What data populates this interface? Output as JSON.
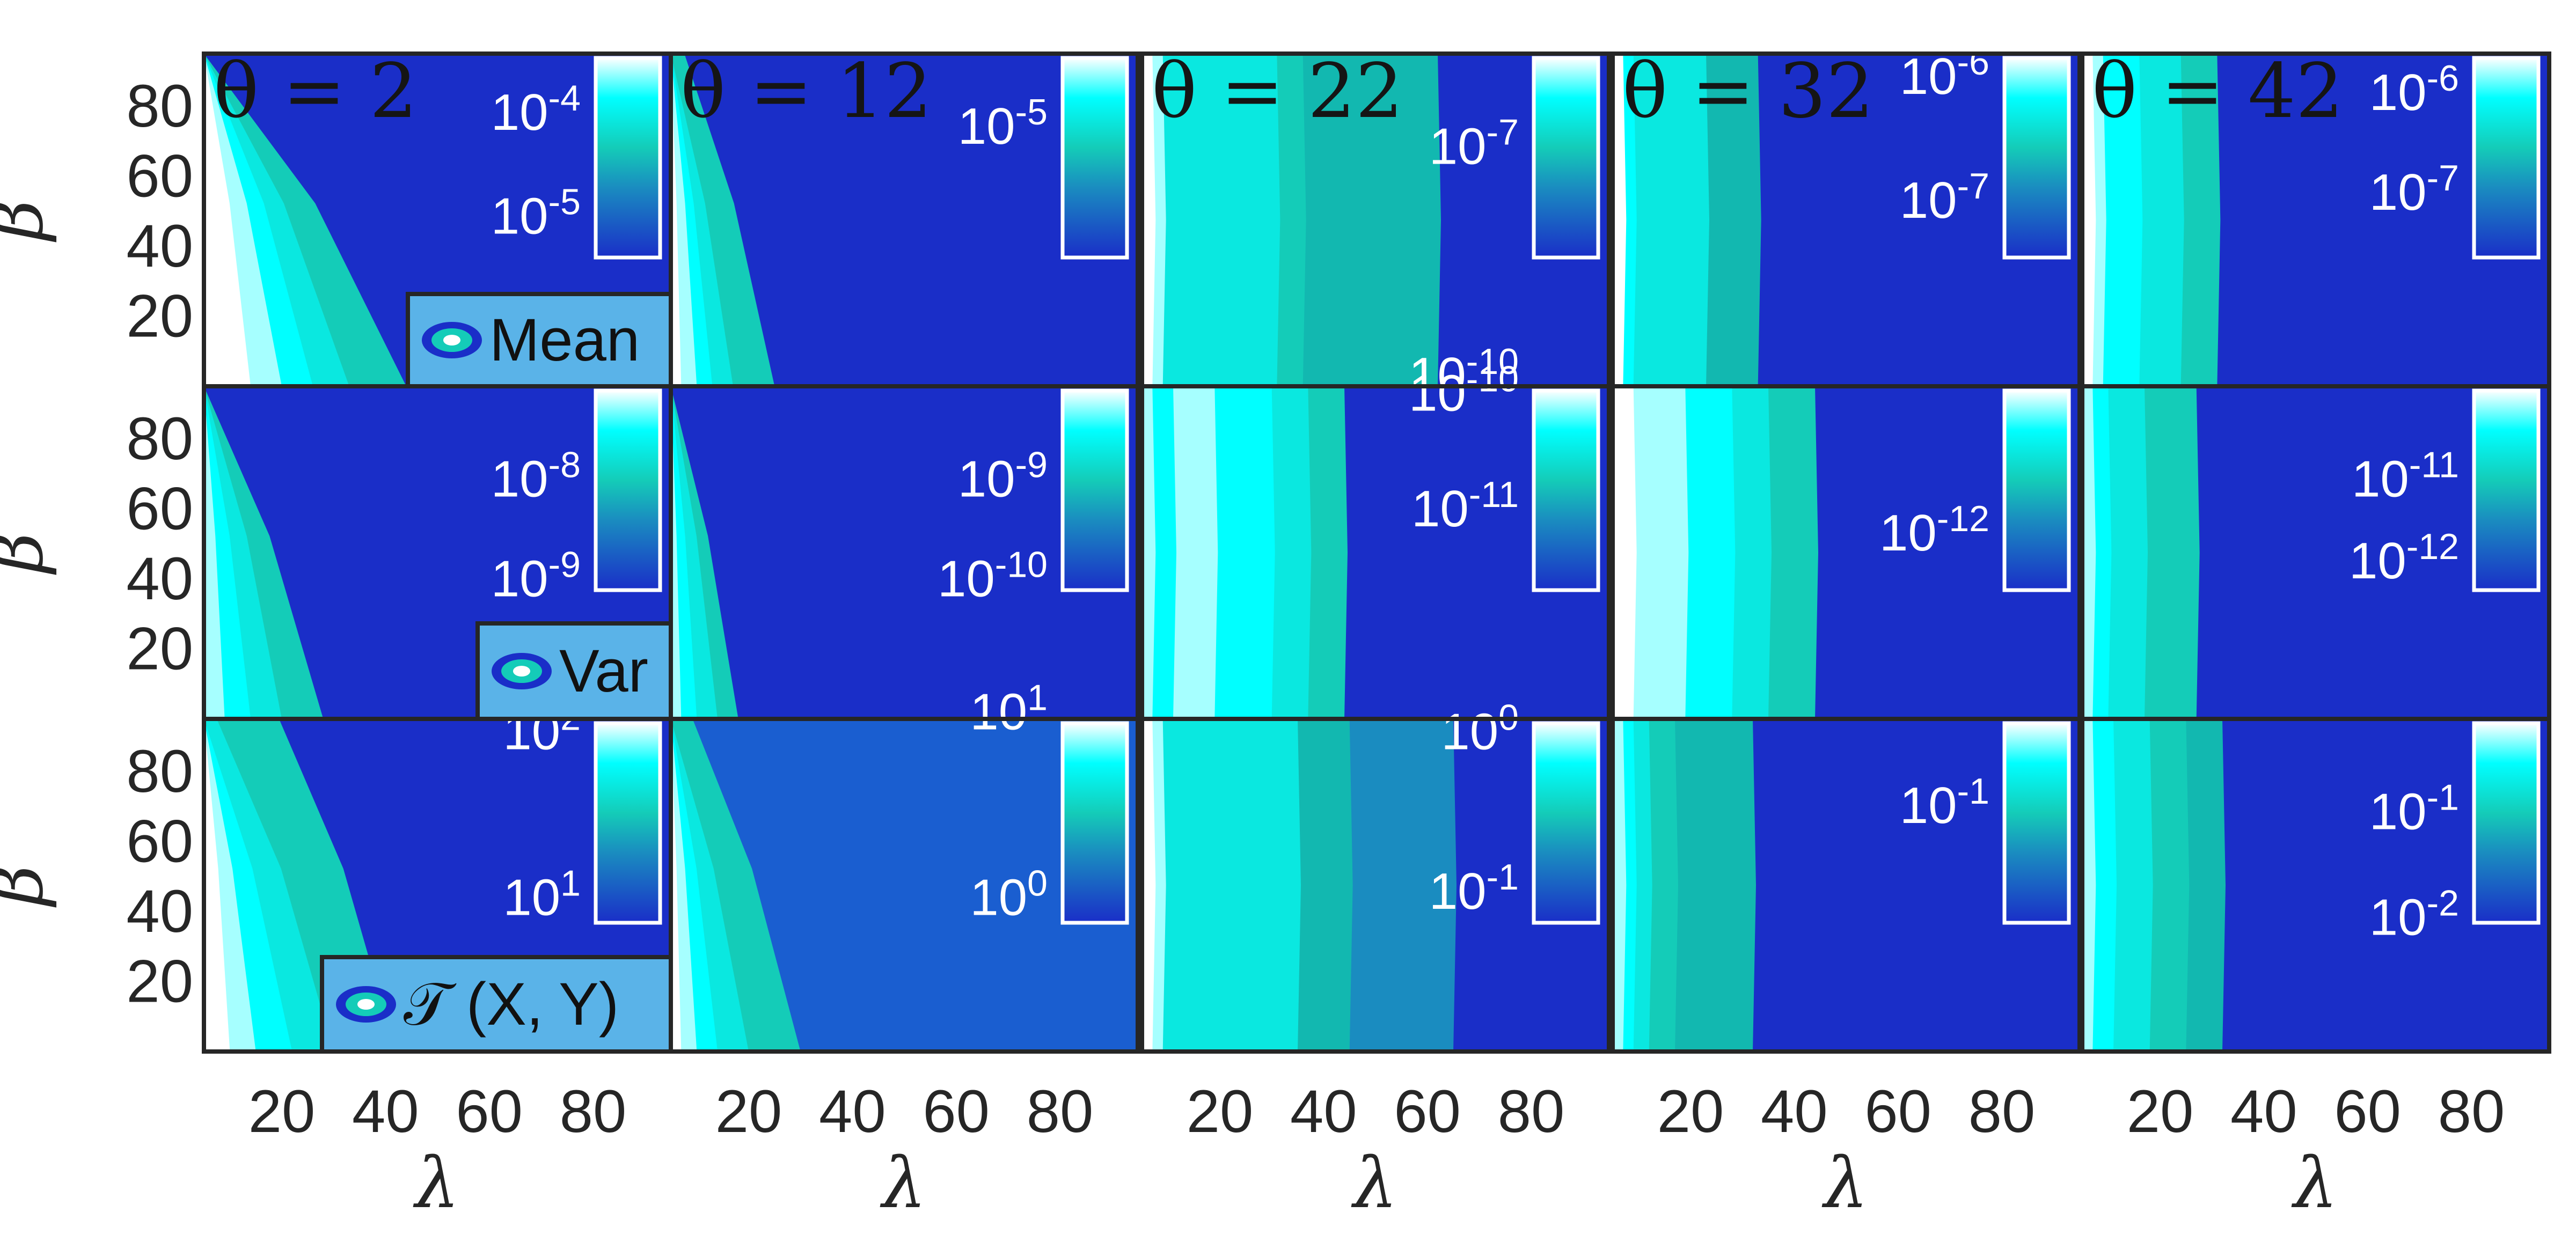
{
  "chart_data": {
    "type": "heatmap",
    "layout": "3x5 grid of filled contour panels",
    "colormap": [
      "#1a2ec8",
      "#1a5ed0",
      "#1a8cc0",
      "#12b8b0",
      "#14ccb8",
      "#0ae8e0",
      "#00ffff",
      "#a6ffff",
      "#ffffff"
    ],
    "x_label": "λ",
    "y_label": "β",
    "x_ticks": [
      "20",
      "40",
      "60",
      "80"
    ],
    "y_ticks": [
      "20",
      "40",
      "60",
      "80"
    ],
    "xlim": [
      5,
      95
    ],
    "ylim": [
      0,
      95
    ],
    "columns": [
      {
        "theta_label": "θ = 2"
      },
      {
        "theta_label": "θ = 12"
      },
      {
        "theta_label": "θ = 22"
      },
      {
        "theta_label": "θ = 32"
      },
      {
        "theta_label": "θ = 42"
      }
    ],
    "rows": [
      {
        "metric": "Mean",
        "legend_label": "Mean"
      },
      {
        "metric": "Var",
        "legend_label": "Var"
      },
      {
        "metric": "T(X,Y)",
        "legend_label": "𝒯 (X, Y)"
      }
    ],
    "panels": [
      [
        {
          "mode": "diag",
          "base": 0,
          "bands": [
            {
              "l": 14,
              "level": 8
            },
            {
              "l": 20,
              "level": 7
            },
            {
              "l": 26,
              "level": 6
            },
            {
              "l": 33,
              "level": 5
            },
            {
              "l": 44,
              "level": 4
            }
          ],
          "slope": -0.52,
          "colorbar_labels": [
            {
              "base": "10",
              "exp": "-4",
              "pos": 0.28
            },
            {
              "base": "10",
              "exp": "-5",
              "pos": 0.8
            }
          ]
        },
        {
          "mode": "diag",
          "base": 0,
          "bands": [
            {
              "l": 7,
              "level": 8
            },
            {
              "l": 10,
              "level": 7
            },
            {
              "l": 13,
              "level": 6
            },
            {
              "l": 17,
              "level": 5
            },
            {
              "l": 25,
              "level": 4
            }
          ],
          "slope": -0.18,
          "colorbar_labels": [
            {
              "base": "10",
              "exp": "-5",
              "pos": 0.35
            }
          ]
        },
        {
          "mode": "vert",
          "base": 0,
          "bands": [
            {
              "l": 7,
              "level": 8
            },
            {
              "l": 9,
              "level": 7
            },
            {
              "l": 31,
              "level": 5
            },
            {
              "l": 36,
              "level": 4
            },
            {
              "l": 62,
              "level": 3
            }
          ],
          "colorbar_labels": [
            {
              "base": "10",
              "exp": "-7",
              "pos": 0.45
            },
            {
              "base": "10",
              "exp": "-10",
              "pos": 1.6
            }
          ]
        },
        {
          "mode": "vert",
          "base": 0,
          "bands": [
            {
              "l": 7,
              "level": 8
            },
            {
              "l": 9,
              "level": 6
            },
            {
              "l": 23,
              "level": 5
            },
            {
              "l": 33,
              "level": 3
            }
          ],
          "colorbar_labels": [
            {
              "base": "10",
              "exp": "-6",
              "pos": 0.1
            },
            {
              "base": "10",
              "exp": "-7",
              "pos": 0.72
            }
          ]
        },
        {
          "mode": "vert",
          "base": 0,
          "bands": [
            {
              "l": 7,
              "level": 8
            },
            {
              "l": 9,
              "level": 7
            },
            {
              "l": 16,
              "level": 6
            },
            {
              "l": 24,
              "level": 5
            },
            {
              "l": 31,
              "level": 4
            }
          ],
          "colorbar_labels": [
            {
              "base": "10",
              "exp": "-6",
              "pos": 0.18
            },
            {
              "base": "10",
              "exp": "-7",
              "pos": 0.68
            }
          ]
        }
      ],
      [
        {
          "mode": "diag",
          "base": 0,
          "bands": [
            {
              "l": 9,
              "level": 7
            },
            {
              "l": 14,
              "level": 6
            },
            {
              "l": 20,
              "level": 5
            },
            {
              "l": 28,
              "level": 4
            }
          ],
          "slope": -0.3,
          "colorbar_labels": [
            {
              "base": "10",
              "exp": "-8",
              "pos": 0.45
            },
            {
              "base": "10",
              "exp": "-9",
              "pos": 0.95
            }
          ]
        },
        {
          "mode": "diag",
          "base": 0,
          "bands": [
            {
              "l": 7,
              "level": 7
            },
            {
              "l": 10,
              "level": 6
            },
            {
              "l": 14,
              "level": 5
            },
            {
              "l": 18,
              "level": 4
            }
          ],
          "slope": -0.14,
          "colorbar_labels": [
            {
              "base": "10",
              "exp": "-9",
              "pos": 0.45
            },
            {
              "base": "10",
              "exp": "-10",
              "pos": 0.95
            }
          ]
        },
        {
          "mode": "vert",
          "base": 0,
          "bands": [
            {
              "l": 7,
              "level": 7
            },
            {
              "l": 11,
              "level": 6
            },
            {
              "l": 19,
              "level": 7
            },
            {
              "l": 30,
              "level": 6
            },
            {
              "l": 37,
              "level": 5
            },
            {
              "l": 44,
              "level": 4
            }
          ],
          "colorbar_labels": [
            {
              "base": "10",
              "exp": "-10",
              "pos": 0.02
            },
            {
              "base": "10",
              "exp": "-11",
              "pos": 0.6
            }
          ]
        },
        {
          "mode": "vert",
          "base": 0,
          "bands": [
            {
              "l": 9,
              "level": 8
            },
            {
              "l": 19,
              "level": 7
            },
            {
              "l": 28,
              "level": 6
            },
            {
              "l": 35,
              "level": 5
            },
            {
              "l": 44,
              "level": 4
            }
          ],
          "colorbar_labels": [
            {
              "base": "10",
              "exp": "-12",
              "pos": 0.72
            }
          ]
        },
        {
          "mode": "vert",
          "base": 0,
          "bands": [
            {
              "l": 7,
              "level": 7
            },
            {
              "l": 10,
              "level": 6
            },
            {
              "l": 17,
              "level": 5
            },
            {
              "l": 27,
              "level": 4
            }
          ],
          "colorbar_labels": [
            {
              "base": "10",
              "exp": "-11",
              "pos": 0.45
            },
            {
              "base": "10",
              "exp": "-12",
              "pos": 0.86
            }
          ]
        }
      ],
      [
        {
          "mode": "diag",
          "base": 0,
          "bands": [
            {
              "l": 10,
              "level": 8
            },
            {
              "l": 15,
              "level": 7
            },
            {
              "l": 22,
              "level": 6
            },
            {
              "l": 30,
              "level": 5
            },
            {
              "l": 42,
              "level": 4
            }
          ],
          "slope": -0.24,
          "colorbar_labels": [
            {
              "base": "10",
              "exp": "2",
              "pos": 0.05
            },
            {
              "base": "10",
              "exp": "1",
              "pos": 0.88
            }
          ]
        },
        {
          "mode": "diag",
          "base": 1,
          "bands": [
            {
              "l": 7,
              "level": 8
            },
            {
              "l": 10,
              "level": 7
            },
            {
              "l": 14,
              "level": 6
            },
            {
              "l": 20,
              "level": 5
            },
            {
              "l": 30,
              "level": 4
            }
          ],
          "slope": -0.22,
          "colorbar_labels": [
            {
              "base": "10",
              "exp": "1",
              "pos": -0.05
            },
            {
              "base": "10",
              "exp": "0",
              "pos": 0.88
            }
          ]
        },
        {
          "mode": "vert",
          "base": 0,
          "bands": [
            {
              "l": 7,
              "level": 8
            },
            {
              "l": 9,
              "level": 7
            },
            {
              "l": 35,
              "level": 5
            },
            {
              "l": 45,
              "level": 3
            },
            {
              "l": 65,
              "level": 2
            }
          ],
          "colorbar_labels": [
            {
              "base": "10",
              "exp": "0",
              "pos": 0.05
            },
            {
              "base": "10",
              "exp": "-1",
              "pos": 0.85
            }
          ]
        },
        {
          "mode": "vert",
          "base": 0,
          "bands": [
            {
              "l": 7,
              "level": 7
            },
            {
              "l": 9,
              "level": 6
            },
            {
              "l": 12,
              "level": 5
            },
            {
              "l": 17,
              "level": 4
            },
            {
              "l": 32,
              "level": 3
            }
          ],
          "colorbar_labels": [
            {
              "base": "10",
              "exp": "-1",
              "pos": 0.42
            }
          ]
        },
        {
          "mode": "vert",
          "base": 0,
          "bands": [
            {
              "l": 7,
              "level": 7
            },
            {
              "l": 11,
              "level": 6
            },
            {
              "l": 18,
              "level": 5
            },
            {
              "l": 25,
              "level": 4
            },
            {
              "l": 32,
              "level": 3
            }
          ],
          "colorbar_labels": [
            {
              "base": "10",
              "exp": "-1",
              "pos": 0.45
            },
            {
              "base": "10",
              "exp": "-2",
              "pos": 0.98
            }
          ]
        }
      ]
    ]
  }
}
